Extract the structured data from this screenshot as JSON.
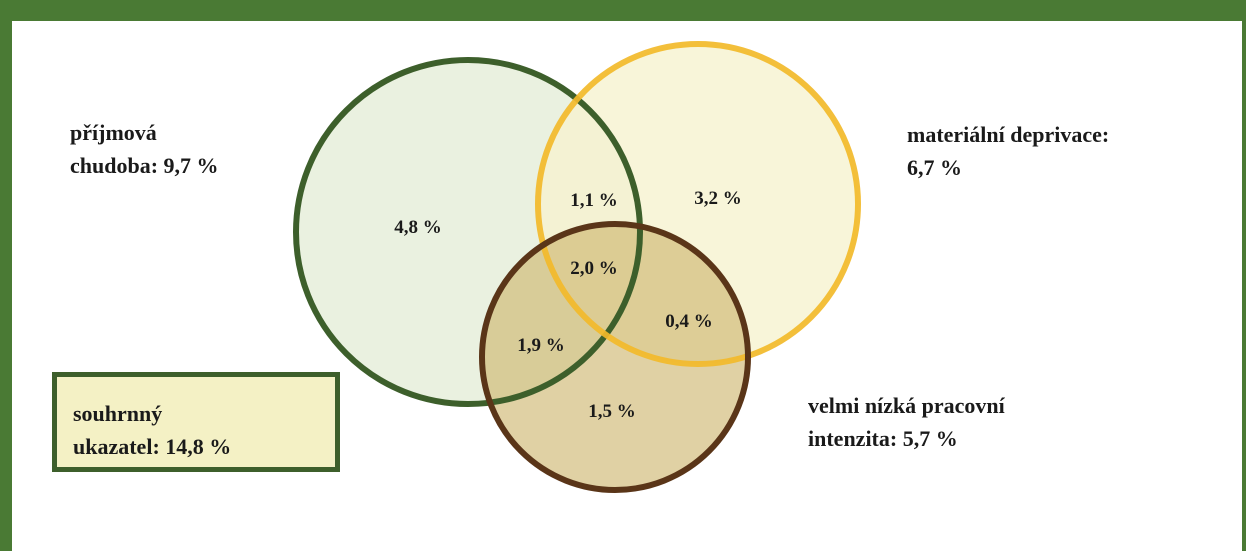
{
  "diagram": {
    "top_text_fragment": "(%)",
    "circles": [
      {
        "id": "income_poverty",
        "label_line1": "příjmová",
        "label_line2": "chudoba: 9,7 %",
        "stroke": "#3d5f2b",
        "fill": "#e6efdb"
      },
      {
        "id": "material_deprivation",
        "label_line1": "materiální deprivace:",
        "label_line2": "6,7 %",
        "stroke": "#f2ba2a",
        "fill": "#f6f3cf"
      },
      {
        "id": "low_work_intensity",
        "label_line1": "velmi nízká pracovní",
        "label_line2": "intenzita: 5,7 %",
        "stroke": "#5a3518",
        "fill": "#d8c07e"
      }
    ],
    "segments": {
      "income_only": "4,8 %",
      "material_only": "3,2 %",
      "income_material": "1,1 %",
      "all_three": "2,0 %",
      "material_work": "0,4 %",
      "income_work": "1,9 %",
      "work_only": "1,5 %"
    },
    "summary": {
      "line1": "souhrnný",
      "line2": "ukazatel: 14,8 %"
    }
  },
  "colors": {
    "frame": "#4a7a34",
    "summary_border": "#3d5f2b",
    "summary_fill": "#f4f1c5"
  }
}
